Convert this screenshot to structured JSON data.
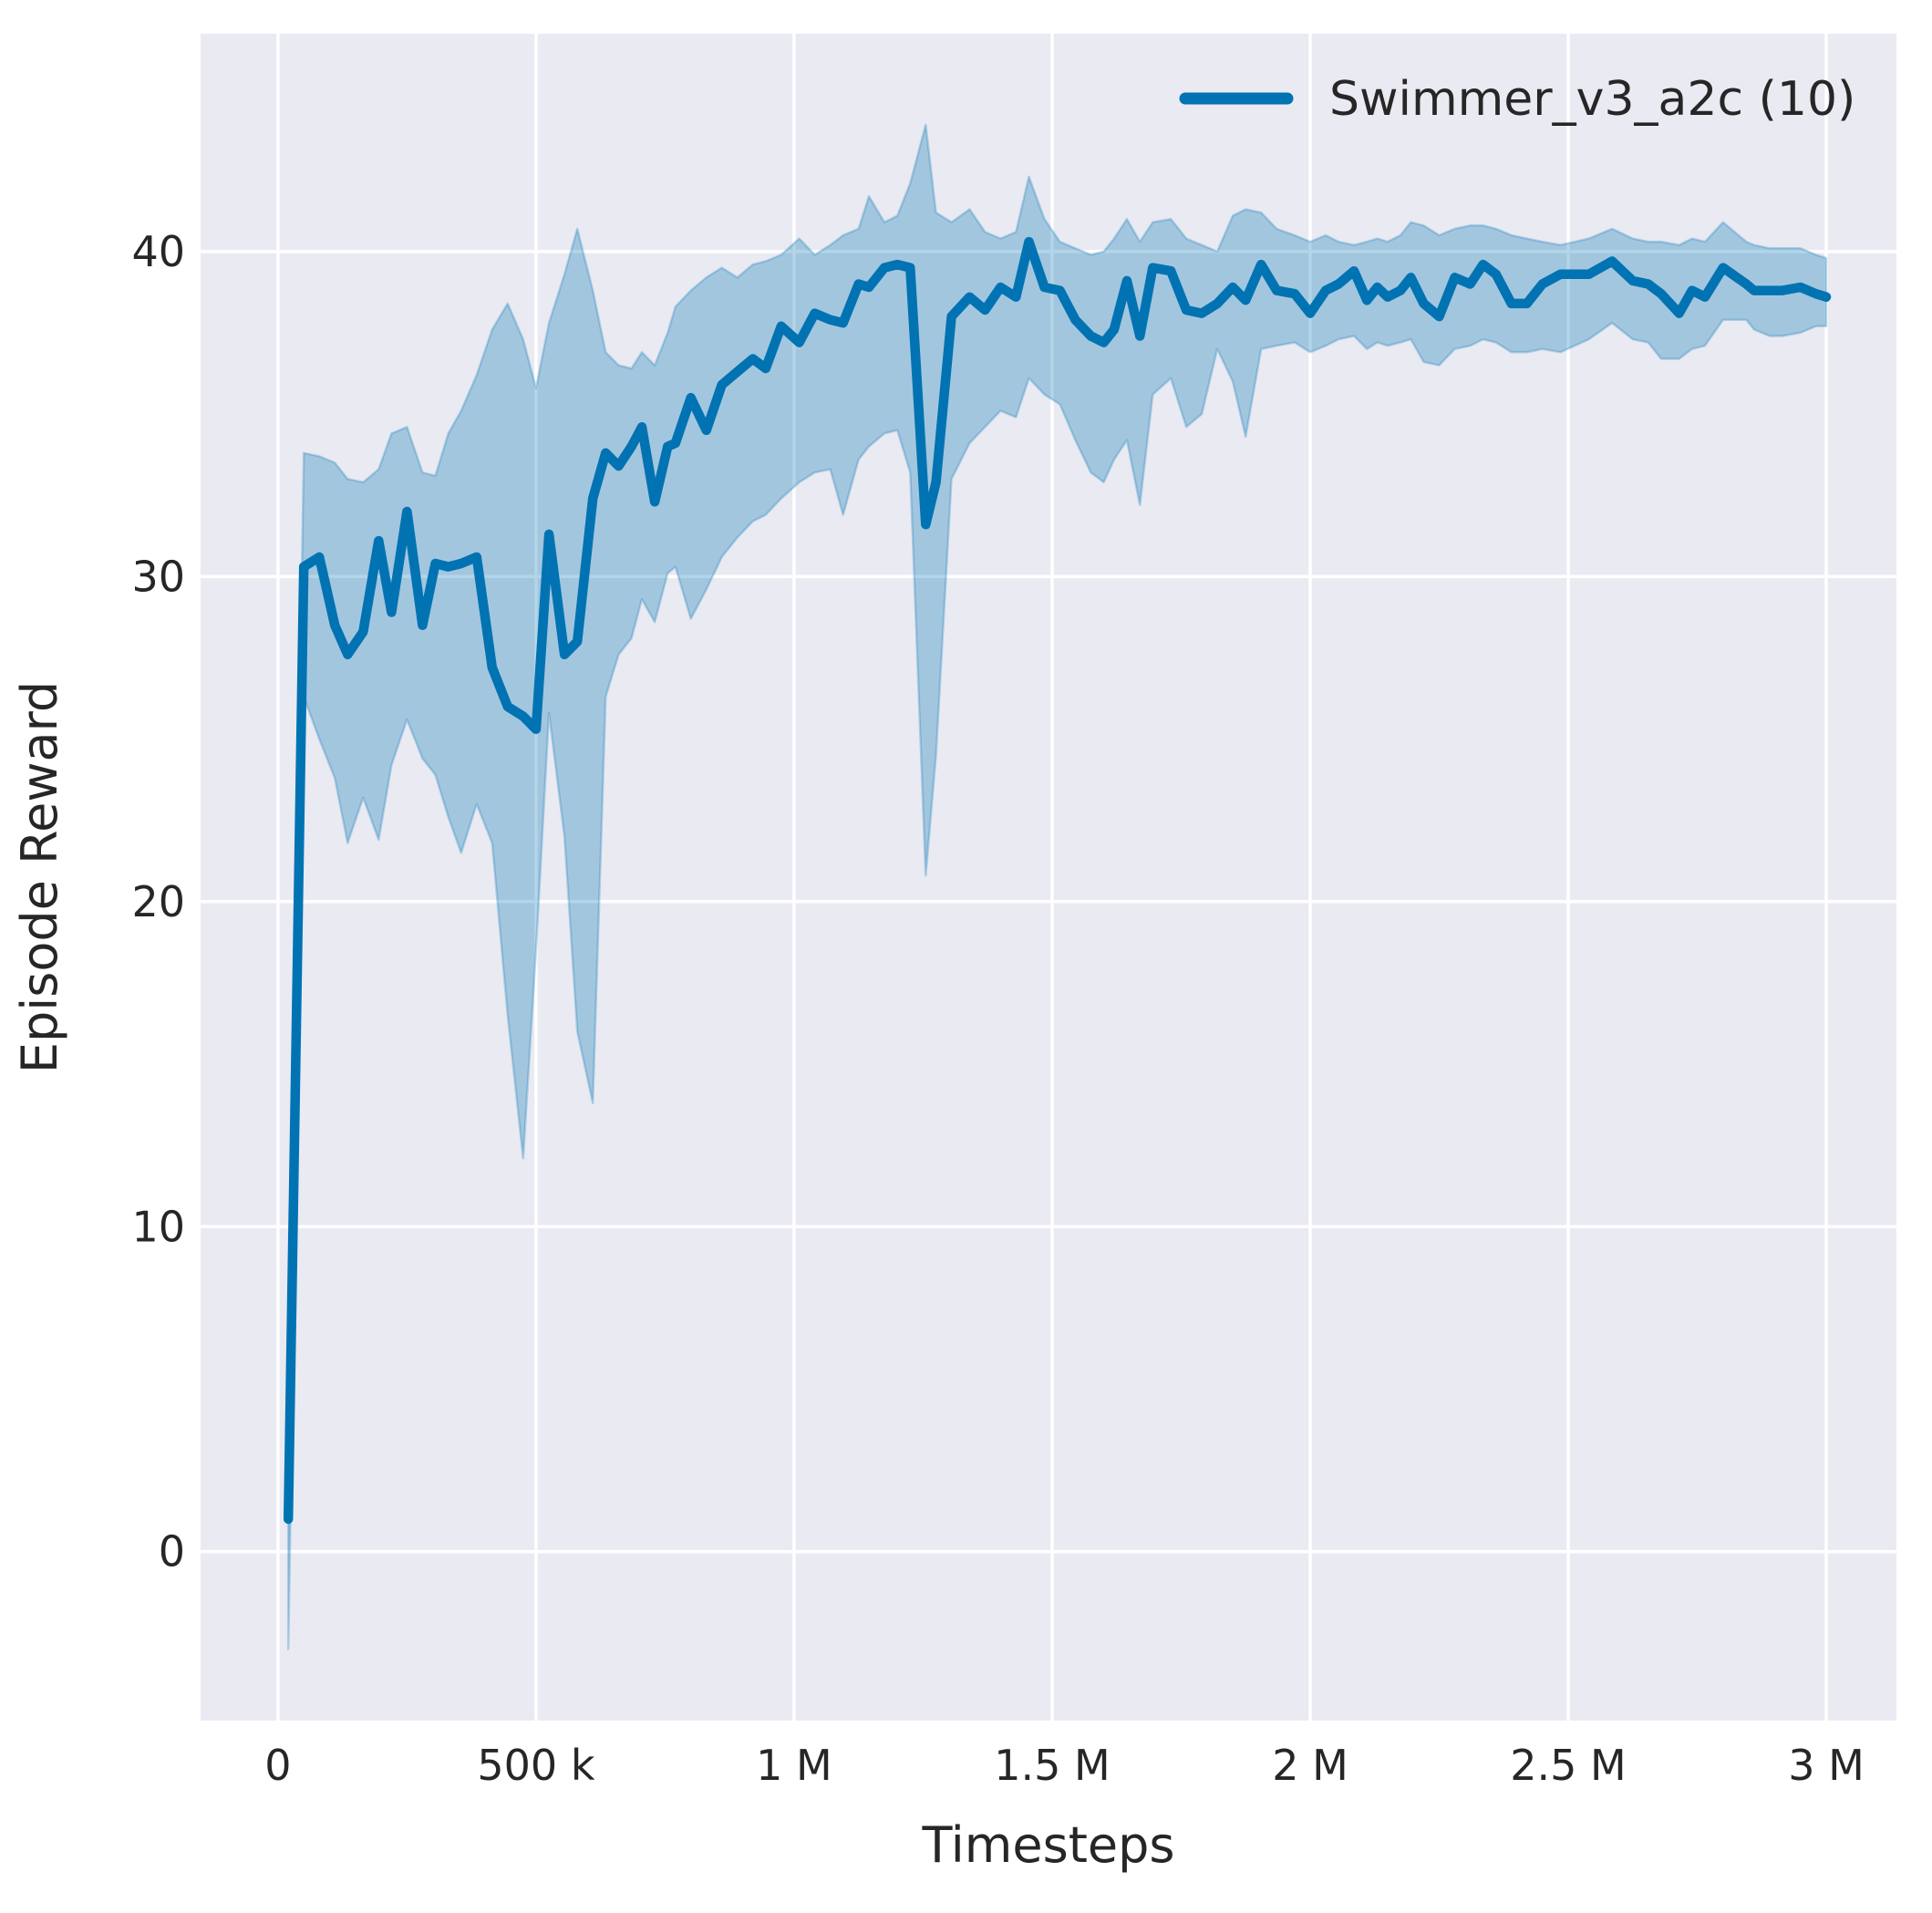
{
  "figure": {
    "background": "#ffffff",
    "plot_background": "#eaeaf2",
    "grid_color": "#ffffff",
    "grid_width": 3.5,
    "text_color": "#262626"
  },
  "chart_data": {
    "type": "line",
    "title": "",
    "xlabel": "Timesteps",
    "ylabel": "Episode Reward",
    "grid": true,
    "legend": {
      "position": "upper right",
      "frame": false,
      "entries": [
        {
          "label": "Swimmer_v3_a2c (10)",
          "color": "#0173b2"
        }
      ]
    },
    "xlim_k": [
      -150,
      3136
    ],
    "ylim": [
      -5.2,
      46.7
    ],
    "x_ticks": [
      {
        "value_k": 0,
        "label": "0"
      },
      {
        "value_k": 500,
        "label": "500 k"
      },
      {
        "value_k": 1000,
        "label": "1 M"
      },
      {
        "value_k": 1500,
        "label": "1.5 M"
      },
      {
        "value_k": 2000,
        "label": "2 M"
      },
      {
        "value_k": 2500,
        "label": "2.5 M"
      },
      {
        "value_k": 3000,
        "label": "3 M"
      }
    ],
    "y_ticks": [
      {
        "value": 0,
        "label": "0"
      },
      {
        "value": 10,
        "label": "10"
      },
      {
        "value": 20,
        "label": "20"
      },
      {
        "value": 30,
        "label": "30"
      },
      {
        "value": 40,
        "label": "40"
      }
    ],
    "series": [
      {
        "name": "Swimmer_v3_a2c (10)",
        "color": "#0173b2",
        "line_width": 10.5,
        "band_alpha": 0.3,
        "points_format": [
          "timesteps_k",
          "mean",
          "band_low",
          "band_high"
        ],
        "points": [
          [
            20,
            1.0,
            -3.0,
            4.0
          ],
          [
            50,
            30.3,
            26.3,
            33.8
          ],
          [
            80,
            30.6,
            25.0,
            33.7
          ],
          [
            110,
            28.5,
            23.8,
            33.5
          ],
          [
            135,
            27.6,
            21.8,
            33.0
          ],
          [
            165,
            28.3,
            23.2,
            32.9
          ],
          [
            195,
            31.1,
            21.9,
            33.3
          ],
          [
            220,
            28.9,
            24.2,
            34.4
          ],
          [
            250,
            32.0,
            25.6,
            34.6
          ],
          [
            280,
            28.5,
            24.4,
            33.2
          ],
          [
            305,
            30.4,
            23.9,
            33.1
          ],
          [
            330,
            30.3,
            22.6,
            34.4
          ],
          [
            355,
            30.4,
            21.5,
            35.1
          ],
          [
            385,
            30.6,
            23.0,
            36.2
          ],
          [
            415,
            27.2,
            21.8,
            37.6
          ],
          [
            445,
            26.0,
            16.5,
            38.4
          ],
          [
            475,
            25.7,
            12.1,
            37.3
          ],
          [
            500,
            25.3,
            18.5,
            35.8
          ],
          [
            525,
            31.3,
            25.8,
            37.8
          ],
          [
            555,
            27.6,
            22.0,
            39.3
          ],
          [
            580,
            28.0,
            16.0,
            40.7
          ],
          [
            610,
            32.4,
            13.8,
            38.8
          ],
          [
            635,
            33.8,
            26.3,
            36.9
          ],
          [
            660,
            33.4,
            27.6,
            36.5
          ],
          [
            685,
            34.0,
            28.1,
            36.4
          ],
          [
            705,
            34.6,
            29.3,
            36.9
          ],
          [
            730,
            32.3,
            28.6,
            36.5
          ],
          [
            755,
            34.0,
            30.1,
            37.5
          ],
          [
            770,
            34.1,
            30.3,
            38.3
          ],
          [
            800,
            35.5,
            28.7,
            38.8
          ],
          [
            830,
            34.5,
            29.6,
            39.2
          ],
          [
            860,
            35.9,
            30.6,
            39.5
          ],
          [
            890,
            36.3,
            31.2,
            39.2
          ],
          [
            920,
            36.7,
            31.7,
            39.6
          ],
          [
            945,
            36.4,
            31.9,
            39.7
          ],
          [
            975,
            37.7,
            32.4,
            39.9
          ],
          [
            1010,
            37.2,
            32.9,
            40.4
          ],
          [
            1040,
            38.1,
            33.2,
            39.9
          ],
          [
            1070,
            37.9,
            33.3,
            40.2
          ],
          [
            1095,
            37.8,
            31.9,
            40.5
          ],
          [
            1125,
            39.0,
            33.6,
            40.7
          ],
          [
            1145,
            38.9,
            34.0,
            41.7
          ],
          [
            1175,
            39.5,
            34.4,
            40.9
          ],
          [
            1200,
            39.6,
            34.5,
            41.1
          ],
          [
            1225,
            39.5,
            33.2,
            42.1
          ],
          [
            1255,
            31.6,
            20.8,
            43.9
          ],
          [
            1275,
            32.9,
            24.5,
            41.2
          ],
          [
            1305,
            38.0,
            33.0,
            40.9
          ],
          [
            1340,
            38.6,
            34.1,
            41.3
          ],
          [
            1370,
            38.2,
            34.6,
            40.6
          ],
          [
            1400,
            38.9,
            35.1,
            40.4
          ],
          [
            1430,
            38.6,
            34.9,
            40.6
          ],
          [
            1455,
            40.3,
            36.1,
            42.3
          ],
          [
            1485,
            38.9,
            35.6,
            41.0
          ],
          [
            1515,
            38.8,
            35.3,
            40.3
          ],
          [
            1545,
            37.9,
            34.2,
            40.1
          ],
          [
            1575,
            37.4,
            33.2,
            39.9
          ],
          [
            1600,
            37.2,
            32.9,
            40.0
          ],
          [
            1620,
            37.6,
            33.6,
            40.4
          ],
          [
            1645,
            39.1,
            34.2,
            41.0
          ],
          [
            1670,
            37.4,
            32.2,
            40.3
          ],
          [
            1695,
            39.5,
            35.6,
            40.9
          ],
          [
            1730,
            39.4,
            36.1,
            41.0
          ],
          [
            1760,
            38.2,
            34.6,
            40.4
          ],
          [
            1790,
            38.1,
            35.0,
            40.2
          ],
          [
            1820,
            38.4,
            37.0,
            40.0
          ],
          [
            1850,
            38.9,
            36.0,
            41.1
          ],
          [
            1875,
            38.5,
            34.3,
            41.3
          ],
          [
            1905,
            39.6,
            37.0,
            41.2
          ],
          [
            1935,
            38.8,
            37.1,
            40.7
          ],
          [
            1970,
            38.7,
            37.2,
            40.5
          ],
          [
            2000,
            38.1,
            36.9,
            40.3
          ],
          [
            2030,
            38.8,
            37.1,
            40.5
          ],
          [
            2055,
            39.0,
            37.3,
            40.3
          ],
          [
            2085,
            39.4,
            37.4,
            40.2
          ],
          [
            2110,
            38.5,
            37.0,
            40.3
          ],
          [
            2130,
            38.9,
            37.2,
            40.4
          ],
          [
            2150,
            38.6,
            37.1,
            40.3
          ],
          [
            2175,
            38.8,
            37.2,
            40.5
          ],
          [
            2195,
            39.2,
            37.3,
            40.9
          ],
          [
            2220,
            38.4,
            36.6,
            40.8
          ],
          [
            2250,
            38.0,
            36.5,
            40.5
          ],
          [
            2280,
            39.2,
            37.0,
            40.7
          ],
          [
            2310,
            39.0,
            37.1,
            40.8
          ],
          [
            2335,
            39.6,
            37.3,
            40.8
          ],
          [
            2360,
            39.3,
            37.2,
            40.7
          ],
          [
            2390,
            38.4,
            36.9,
            40.5
          ],
          [
            2420,
            38.4,
            36.9,
            40.4
          ],
          [
            2450,
            39.0,
            37.0,
            40.3
          ],
          [
            2485,
            39.3,
            36.9,
            40.2
          ],
          [
            2540,
            39.3,
            37.3,
            40.4
          ],
          [
            2585,
            39.7,
            37.8,
            40.7
          ],
          [
            2625,
            39.1,
            37.3,
            40.4
          ],
          [
            2655,
            39.0,
            37.2,
            40.3
          ],
          [
            2680,
            38.7,
            36.7,
            40.3
          ],
          [
            2715,
            38.1,
            36.7,
            40.2
          ],
          [
            2740,
            38.8,
            37.0,
            40.4
          ],
          [
            2765,
            38.6,
            37.1,
            40.3
          ],
          [
            2800,
            39.5,
            37.9,
            40.9
          ],
          [
            2845,
            39.0,
            37.9,
            40.3
          ],
          [
            2860,
            38.8,
            37.6,
            40.2
          ],
          [
            2890,
            38.8,
            37.4,
            40.1
          ],
          [
            2915,
            38.8,
            37.4,
            40.1
          ],
          [
            2950,
            38.9,
            37.5,
            40.1
          ],
          [
            2980,
            38.7,
            37.7,
            39.9
          ],
          [
            3000,
            38.6,
            37.7,
            39.8
          ]
        ]
      }
    ]
  }
}
